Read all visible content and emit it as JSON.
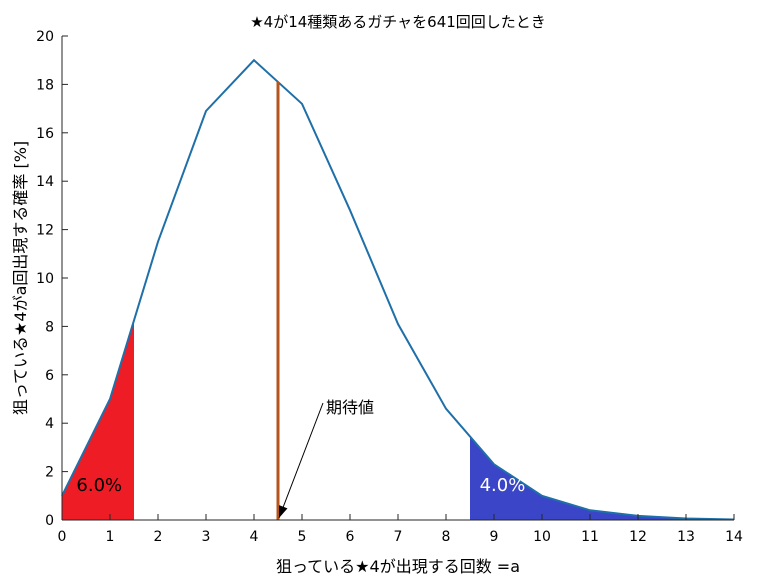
{
  "chart_data": {
    "type": "line",
    "title": "★4が14種類あるガチャを641回回したとき",
    "xlabel": "狙っている★4が出現する回数 =a",
    "ylabel": "狙っている★4がa回出現する確率 [%]",
    "xlim": [
      0,
      14
    ],
    "ylim": [
      0,
      20
    ],
    "x_ticks": [
      "0",
      "1",
      "2",
      "3",
      "4",
      "5",
      "6",
      "7",
      "8",
      "9",
      "10",
      "11",
      "12",
      "13",
      "14"
    ],
    "y_ticks": [
      "0",
      "2",
      "4",
      "6",
      "8",
      "10",
      "12",
      "14",
      "16",
      "18",
      "20"
    ],
    "grid": false,
    "series": [
      {
        "x": [
          0,
          1,
          2,
          3,
          4,
          5,
          6,
          7,
          8,
          9,
          10,
          11,
          12,
          13,
          14
        ],
        "values": [
          1.0,
          5.0,
          11.5,
          16.9,
          19.0,
          17.2,
          12.8,
          8.1,
          4.6,
          2.3,
          1.0,
          0.4,
          0.17,
          0.06,
          0.02
        ],
        "color": "#1f6fa8"
      }
    ],
    "shaded_regions": [
      {
        "x_from": 0,
        "x_to": 1.5,
        "color": "#ee1c25",
        "label": "6.0%",
        "label_color": "#000000"
      },
      {
        "x_from": 8.5,
        "x_to": 14,
        "color": "#3a45c8",
        "label": "4.0%",
        "label_color": "#ffffff"
      }
    ],
    "expected_value": {
      "x": 4.5,
      "color": "#b5541c"
    },
    "annotation": {
      "text": "期待値"
    }
  }
}
